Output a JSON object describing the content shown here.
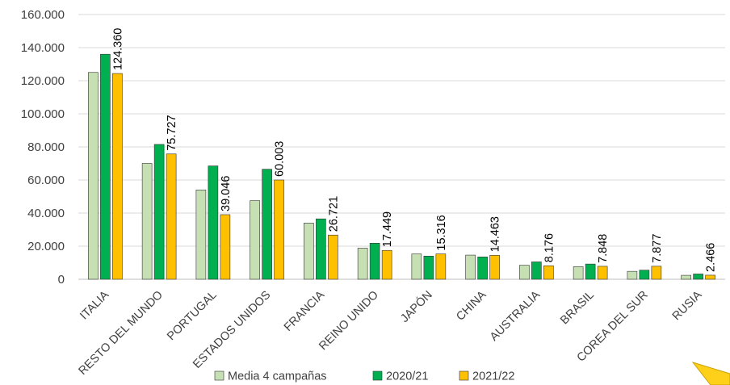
{
  "chart_data": {
    "type": "bar",
    "categories": [
      "ITALIA",
      "RESTO DEL MUNDO",
      "PORTUGAL",
      "ESTADOS UNIDOS",
      "FRANCIA",
      "REINO UNIDO",
      "JAPÓN",
      "CHINA",
      "AUSTRALIA",
      "BRASIL",
      "COREA DEL SUR",
      "RUSIA"
    ],
    "series": [
      {
        "name": "Media 4 campañas",
        "color": "#c6e0b4",
        "values": [
          125000,
          70000,
          54000,
          47500,
          34000,
          18800,
          15300,
          14600,
          8500,
          7600,
          4800,
          2400
        ]
      },
      {
        "name": "2020/21",
        "color": "#00b050",
        "values": [
          136000,
          81500,
          68500,
          66500,
          36500,
          21800,
          14000,
          13500,
          10500,
          9200,
          5500,
          3200
        ]
      },
      {
        "name": "2021/22",
        "color": "#ffc000",
        "values": [
          124360,
          75727,
          39046,
          60003,
          26721,
          17449,
          15316,
          14463,
          8176,
          7848,
          7877,
          2466
        ]
      }
    ],
    "data_labels": [
      "124.360",
      "75.727",
      "39.046",
      "60.003",
      "26.721",
      "17.449",
      "15.316",
      "14.463",
      "8.176",
      "7.848",
      "7.877",
      "2.466"
    ],
    "ylim": [
      0,
      160000
    ],
    "yticks": [
      "0",
      "20.000",
      "40.000",
      "60.000",
      "80.000",
      "100.000",
      "120.000",
      "140.000",
      "160.000"
    ],
    "grid": true,
    "legend_position": "bottom",
    "title": "",
    "xlabel": "",
    "ylabel": ""
  }
}
